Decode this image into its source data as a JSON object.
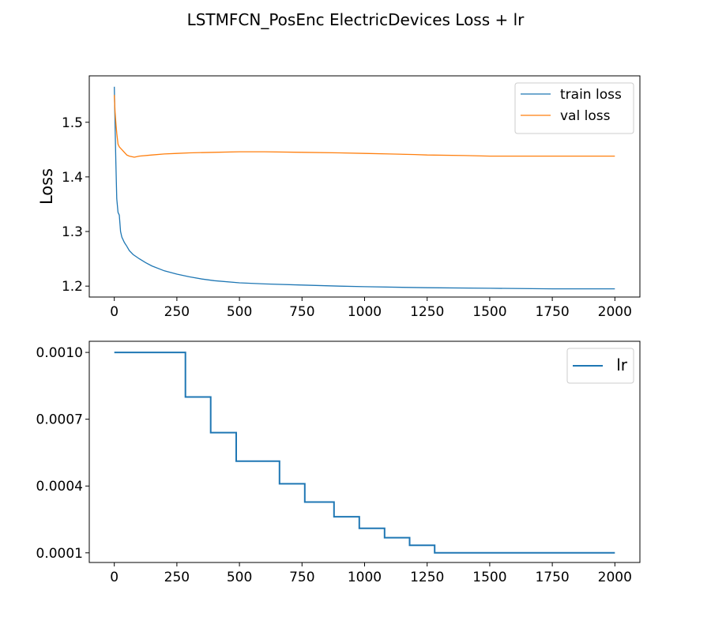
{
  "figure": {
    "title": "LSTMFCN_PosEnc ElectricDevices Loss + lr"
  },
  "chart_data": [
    {
      "type": "line",
      "title": "",
      "xlabel": "",
      "ylabel": "Loss",
      "xlim": [
        -100,
        2100
      ],
      "ylim": [
        1.18,
        1.585
      ],
      "xticks": [
        0,
        250,
        500,
        750,
        1000,
        1250,
        1500,
        1750,
        2000
      ],
      "xtick_labels": [
        "0",
        "250",
        "500",
        "750",
        "1000",
        "1250",
        "1500",
        "1750",
        "2000"
      ],
      "yticks": [
        1.2,
        1.3,
        1.4,
        1.5
      ],
      "ytick_labels": [
        "1.2",
        "1.3",
        "1.4",
        "1.5"
      ],
      "grid": false,
      "legend_position": "top-right",
      "series": [
        {
          "name": "train loss",
          "color": "#1f77b4",
          "x": [
            0,
            3,
            6,
            10,
            15,
            20,
            25,
            30,
            40,
            50,
            60,
            75,
            100,
            125,
            150,
            200,
            250,
            300,
            350,
            400,
            500,
            600,
            750,
            900,
            1000,
            1250,
            1500,
            1750,
            2000
          ],
          "y": [
            1.565,
            1.5,
            1.43,
            1.36,
            1.335,
            1.33,
            1.3,
            1.29,
            1.28,
            1.273,
            1.265,
            1.258,
            1.25,
            1.243,
            1.237,
            1.228,
            1.222,
            1.217,
            1.213,
            1.21,
            1.206,
            1.204,
            1.202,
            1.2,
            1.199,
            1.197,
            1.196,
            1.195,
            1.195
          ]
        },
        {
          "name": "val loss",
          "color": "#ff7f0e",
          "x": [
            0,
            3,
            6,
            10,
            15,
            20,
            30,
            40,
            50,
            60,
            80,
            100,
            150,
            200,
            250,
            300,
            400,
            500,
            600,
            750,
            900,
            1000,
            1100,
            1200,
            1250,
            1400,
            1500,
            1750,
            2000
          ],
          "y": [
            1.55,
            1.52,
            1.5,
            1.48,
            1.46,
            1.455,
            1.45,
            1.445,
            1.44,
            1.438,
            1.436,
            1.438,
            1.44,
            1.442,
            1.443,
            1.444,
            1.445,
            1.446,
            1.446,
            1.445,
            1.444,
            1.443,
            1.442,
            1.441,
            1.44,
            1.439,
            1.438,
            1.438,
            1.438
          ]
        }
      ]
    },
    {
      "type": "line",
      "title": "",
      "xlabel": "",
      "ylabel": "",
      "xlim": [
        -100,
        2100
      ],
      "ylim": [
        5.67e-05,
        0.00105
      ],
      "xticks": [
        0,
        250,
        500,
        750,
        1000,
        1250,
        1500,
        1750,
        2000
      ],
      "xtick_labels": [
        "0",
        "250",
        "500",
        "750",
        "1000",
        "1250",
        "1500",
        "1750",
        "2000"
      ],
      "yticks": [
        0.0001,
        0.0004,
        0.0007,
        0.001
      ],
      "ytick_labels": [
        "0.0001",
        "0.0004",
        "0.0007",
        "0.0010"
      ],
      "grid": false,
      "legend_position": "top-right",
      "series": [
        {
          "name": "lr",
          "color": "#1f77b4",
          "step": true,
          "x": [
            0,
            284,
            385,
            487,
            660,
            761,
            878,
            979,
            1080,
            1180,
            1280,
            2000
          ],
          "y": [
            0.001,
            0.0008,
            0.00064,
            0.000512,
            0.00041,
            0.000328,
            0.000262,
            0.00021,
            0.000168,
            0.000134,
            0.0001,
            0.0001
          ]
        }
      ]
    }
  ]
}
